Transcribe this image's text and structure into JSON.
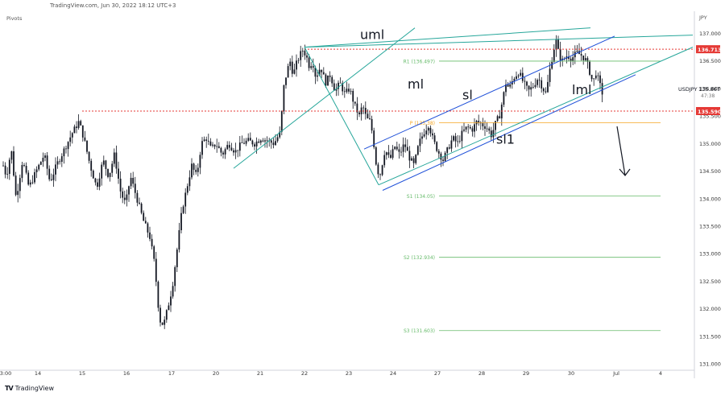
{
  "header": {
    "caption": "TradingView.com, Jun 30, 2022 18:12 UTC+3"
  },
  "indicator": {
    "label": "Pivots"
  },
  "footer": {
    "brand": "TradingView",
    "logo_icon": "tradingview-logo-icon"
  },
  "chart_data": {
    "type": "candlestick",
    "symbol": "USDJPY",
    "currency": "JPY",
    "ylim": [
      131.0,
      137.3
    ],
    "y_ticks": [
      "137.000",
      "136.500",
      "136.000",
      "135.500",
      "135.000",
      "134.500",
      "134.000",
      "133.500",
      "133.000",
      "132.500",
      "132.000",
      "131.500",
      "131.000"
    ],
    "x_ticks": [
      "3:00",
      "14",
      "15",
      "16",
      "17",
      "20",
      "21",
      "22",
      "23",
      "24",
      "27",
      "28",
      "29",
      "30",
      "Jul",
      "4"
    ],
    "last_price": "135.867",
    "countdown": "47:38",
    "price_labels": [
      {
        "text": "136.713",
        "value": 136.713,
        "color": "#e53935"
      },
      {
        "text": "135.590",
        "value": 135.59,
        "color": "#e53935"
      }
    ],
    "pivots": [
      {
        "label": "R1 (136.497)",
        "value": 136.497,
        "color": "#66bb6a"
      },
      {
        "label": "P (135.38)",
        "value": 135.38,
        "color": "#f5a623"
      },
      {
        "label": "S1 (134.05)",
        "value": 134.05,
        "color": "#66bb6a"
      },
      {
        "label": "S2 (132.934)",
        "value": 132.934,
        "color": "#66bb6a"
      },
      {
        "label": "S3 (131.603)",
        "value": 131.603,
        "color": "#66bb6a"
      }
    ],
    "annotations": [
      "uml",
      "ml",
      "sl",
      "lml",
      "sl1"
    ],
    "colors": {
      "median_lines": "#26a69a",
      "channel": "#1e4fd8",
      "resistance": "#e53935",
      "pivot_green": "#66bb6a",
      "pivot_p": "#f5a623",
      "candle": "#131722"
    },
    "close_path": [
      [
        0,
        134.8
      ],
      [
        8,
        134.4
      ],
      [
        14,
        134.9
      ],
      [
        20,
        134.0
      ],
      [
        28,
        134.7
      ],
      [
        36,
        134.2
      ],
      [
        45,
        134.5
      ],
      [
        55,
        134.8
      ],
      [
        62,
        134.3
      ],
      [
        70,
        134.6
      ],
      [
        80,
        134.9
      ],
      [
        90,
        135.2
      ],
      [
        98,
        135.4
      ],
      [
        104,
        135.1
      ],
      [
        112,
        134.6
      ],
      [
        120,
        134.2
      ],
      [
        128,
        134.7
      ],
      [
        135,
        134.4
      ],
      [
        142,
        134.8
      ],
      [
        150,
        134.1
      ],
      [
        156,
        133.9
      ],
      [
        162,
        134.4
      ],
      [
        170,
        134.0
      ],
      [
        178,
        133.6
      ],
      [
        186,
        133.3
      ],
      [
        192,
        132.8
      ],
      [
        198,
        131.8
      ],
      [
        203,
        131.7
      ],
      [
        208,
        132.0
      ],
      [
        214,
        132.4
      ],
      [
        220,
        133.1
      ],
      [
        226,
        133.8
      ],
      [
        232,
        134.2
      ],
      [
        238,
        134.6
      ],
      [
        244,
        134.4
      ],
      [
        250,
        135.0
      ],
      [
        256,
        135.1
      ],
      [
        262,
        134.9
      ],
      [
        268,
        135.0
      ],
      [
        276,
        134.8
      ],
      [
        284,
        135.0
      ],
      [
        292,
        134.85
      ],
      [
        300,
        135.0
      ],
      [
        308,
        135.05
      ],
      [
        316,
        135.0
      ],
      [
        324,
        135.1
      ],
      [
        332,
        135.05
      ],
      [
        340,
        135.0
      ],
      [
        348,
        135.2
      ],
      [
        352,
        136.0
      ],
      [
        356,
        136.3
      ],
      [
        360,
        136.5
      ],
      [
        364,
        136.25
      ],
      [
        368,
        136.45
      ],
      [
        372,
        136.6
      ],
      [
        376,
        136.7
      ],
      [
        380,
        136.6
      ],
      [
        384,
        136.4
      ],
      [
        388,
        136.5
      ],
      [
        392,
        136.2
      ],
      [
        398,
        136.4
      ],
      [
        404,
        136.1
      ],
      [
        410,
        136.25
      ],
      [
        416,
        135.95
      ],
      [
        422,
        136.1
      ],
      [
        428,
        135.9
      ],
      [
        434,
        136.0
      ],
      [
        440,
        135.7
      ],
      [
        446,
        135.5
      ],
      [
        450,
        135.7
      ],
      [
        455,
        135.45
      ],
      [
        460,
        135.4
      ],
      [
        464,
        135.0
      ],
      [
        468,
        134.5
      ],
      [
        472,
        134.45
      ],
      [
        478,
        134.9
      ],
      [
        484,
        134.7
      ],
      [
        490,
        134.95
      ],
      [
        496,
        134.8
      ],
      [
        502,
        135.0
      ],
      [
        508,
        134.75
      ],
      [
        514,
        134.6
      ],
      [
        520,
        135.0
      ],
      [
        526,
        135.2
      ],
      [
        532,
        135.35
      ],
      [
        538,
        135.05
      ],
      [
        544,
        134.85
      ],
      [
        550,
        134.7
      ],
      [
        556,
        134.9
      ],
      [
        562,
        135.1
      ],
      [
        568,
        135.0
      ],
      [
        574,
        135.2
      ],
      [
        580,
        135.3
      ],
      [
        586,
        135.25
      ],
      [
        592,
        135.4
      ],
      [
        598,
        135.35
      ],
      [
        604,
        135.3
      ],
      [
        610,
        135.15
      ],
      [
        616,
        135.4
      ],
      [
        620,
        135.5
      ],
      [
        624,
        135.8
      ],
      [
        628,
        136.1
      ],
      [
        632,
        136.0
      ],
      [
        638,
        136.2
      ],
      [
        644,
        136.3
      ],
      [
        650,
        136.1
      ],
      [
        656,
        135.95
      ],
      [
        662,
        136.05
      ],
      [
        668,
        136.2
      ],
      [
        674,
        136.0
      ],
      [
        678,
        135.9
      ],
      [
        682,
        136.3
      ],
      [
        686,
        136.6
      ],
      [
        690,
        136.9
      ],
      [
        694,
        136.6
      ],
      [
        698,
        136.5
      ],
      [
        704,
        136.6
      ],
      [
        710,
        136.55
      ],
      [
        716,
        136.65
      ],
      [
        722,
        136.6
      ],
      [
        728,
        136.5
      ],
      [
        732,
        136.3
      ],
      [
        736,
        136.1
      ],
      [
        740,
        136.3
      ],
      [
        744,
        136.1
      ],
      [
        748,
        135.9
      ],
      [
        751,
        135.87
      ]
    ]
  }
}
